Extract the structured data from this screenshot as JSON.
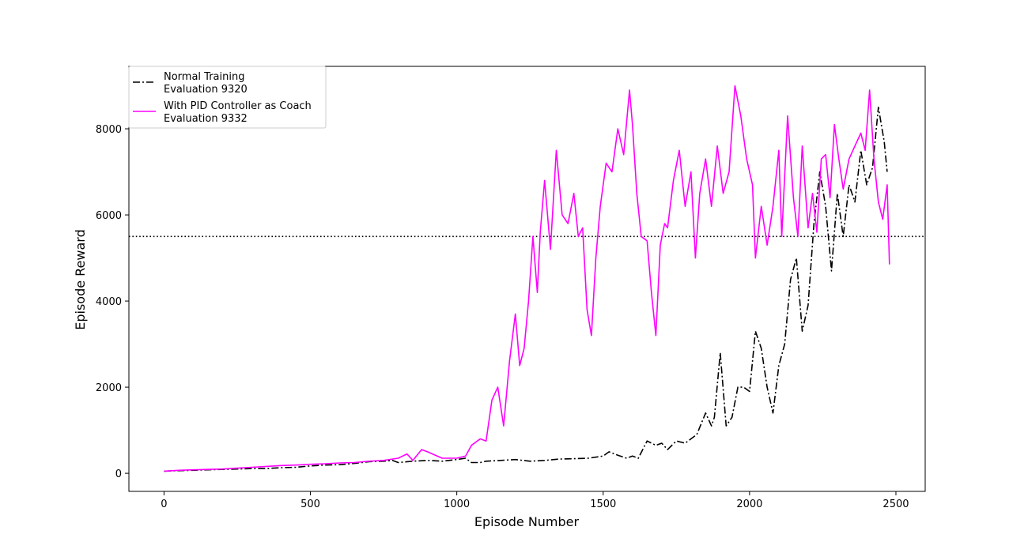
{
  "chart_data": {
    "type": "line",
    "xlabel": "Episode Number",
    "ylabel": "Episode Reward",
    "xlim": [
      -120,
      2600
    ],
    "ylim": [
      -420,
      9450
    ],
    "xticks": [
      0,
      500,
      1000,
      1500,
      2000,
      2500
    ],
    "yticks": [
      0,
      2000,
      4000,
      6000,
      8000
    ],
    "grid": false,
    "legend_position": "top-left",
    "reference_line": {
      "y": 5500,
      "style": "dotted",
      "color": "#000000"
    },
    "series": [
      {
        "name": "Normal Training\nEvaluation 9320",
        "color": "#000000",
        "style": "dash-dot",
        "x": [
          0,
          50,
          100,
          150,
          200,
          250,
          300,
          350,
          400,
          450,
          500,
          550,
          600,
          650,
          700,
          750,
          780,
          800,
          850,
          900,
          950,
          1000,
          1030,
          1050,
          1080,
          1100,
          1150,
          1200,
          1250,
          1300,
          1350,
          1400,
          1450,
          1500,
          1520,
          1550,
          1580,
          1600,
          1620,
          1650,
          1680,
          1700,
          1720,
          1750,
          1780,
          1800,
          1820,
          1850,
          1870,
          1880,
          1900,
          1920,
          1940,
          1960,
          1980,
          2000,
          2020,
          2040,
          2060,
          2080,
          2100,
          2120,
          2140,
          2160,
          2180,
          2200,
          2220,
          2240,
          2260,
          2280,
          2300,
          2320,
          2340,
          2360,
          2380,
          2400,
          2420,
          2440,
          2460,
          2470
        ],
        "values": [
          50,
          60,
          70,
          80,
          90,
          100,
          110,
          110,
          130,
          140,
          170,
          190,
          200,
          230,
          270,
          280,
          300,
          250,
          280,
          300,
          280,
          320,
          350,
          250,
          250,
          280,
          300,
          320,
          280,
          300,
          330,
          340,
          350,
          400,
          500,
          420,
          350,
          400,
          350,
          750,
          650,
          700,
          550,
          750,
          700,
          800,
          900,
          1400,
          1100,
          1300,
          2800,
          1100,
          1300,
          2000,
          2000,
          1900,
          3300,
          2900,
          2000,
          1400,
          2500,
          3000,
          4500,
          5000,
          3300,
          3900,
          5800,
          7000,
          6200,
          4700,
          6500,
          5500,
          6700,
          6300,
          7500,
          6700,
          7100,
          8500,
          7700,
          7000
        ]
      },
      {
        "name": "With PID Controller as Coach\nEvaluation 9332",
        "color": "#ff00ff",
        "style": "solid",
        "x": [
          0,
          50,
          100,
          150,
          200,
          250,
          300,
          350,
          400,
          450,
          500,
          550,
          600,
          650,
          700,
          750,
          800,
          830,
          850,
          880,
          900,
          950,
          1000,
          1030,
          1050,
          1080,
          1100,
          1120,
          1140,
          1160,
          1180,
          1200,
          1215,
          1230,
          1245,
          1260,
          1275,
          1285,
          1300,
          1320,
          1340,
          1360,
          1380,
          1400,
          1415,
          1430,
          1445,
          1460,
          1475,
          1490,
          1510,
          1530,
          1550,
          1570,
          1590,
          1600,
          1615,
          1630,
          1650,
          1665,
          1680,
          1695,
          1710,
          1720,
          1740,
          1760,
          1780,
          1800,
          1815,
          1830,
          1850,
          1870,
          1890,
          1910,
          1930,
          1950,
          1970,
          1990,
          2010,
          2020,
          2040,
          2060,
          2080,
          2100,
          2110,
          2130,
          2150,
          2165,
          2180,
          2200,
          2215,
          2230,
          2245,
          2260,
          2275,
          2290,
          2305,
          2320,
          2340,
          2360,
          2380,
          2395,
          2410,
          2425,
          2440,
          2455,
          2470,
          2478
        ],
        "values": [
          50,
          70,
          80,
          90,
          100,
          120,
          140,
          160,
          180,
          190,
          210,
          220,
          240,
          250,
          280,
          300,
          350,
          450,
          300,
          550,
          500,
          350,
          350,
          400,
          650,
          800,
          750,
          1700,
          2000,
          1100,
          2600,
          3700,
          2500,
          2900,
          4000,
          5500,
          4200,
          5600,
          6800,
          5200,
          7500,
          6000,
          5800,
          6500,
          5500,
          5700,
          3800,
          3200,
          5000,
          6200,
          7200,
          7000,
          8000,
          7400,
          8900,
          8100,
          6500,
          5500,
          5400,
          4200,
          3200,
          5300,
          5800,
          5700,
          6800,
          7500,
          6200,
          7000,
          5000,
          6500,
          7300,
          6200,
          7600,
          6500,
          7000,
          9000,
          8300,
          7300,
          6700,
          5000,
          6200,
          5300,
          6200,
          7500,
          5500,
          8300,
          6400,
          5500,
          7600,
          5700,
          6500,
          5600,
          7300,
          7400,
          6400,
          8100,
          7300,
          6600,
          7300,
          7600,
          7900,
          7500,
          8900,
          7300,
          6300,
          5900,
          6700,
          4850
        ]
      }
    ]
  }
}
